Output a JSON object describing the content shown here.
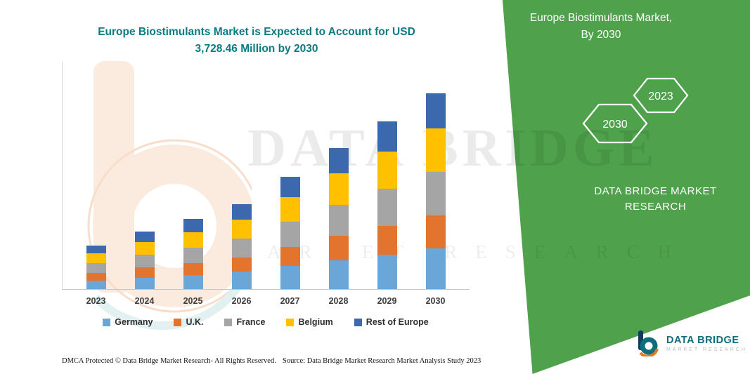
{
  "title": {
    "line1": "Europe Biostimulants Market is Expected to Account for USD",
    "line2": "3,728.46 Million by 2030"
  },
  "side_panel": {
    "heading_line1": "Europe Biostimulants Market,",
    "heading_line2": "By 2030",
    "hexagon_left": "2030",
    "hexagon_right": "2023",
    "brand_line1": "DATA BRIDGE MARKET",
    "brand_line2": "RESEARCH"
  },
  "watermark": {
    "line1": "DATA BRIDGE",
    "line2": "MARKET RESEARCH"
  },
  "logo": {
    "title": "DATA BRIDGE",
    "subtitle": "MARKET RESEARCH"
  },
  "footer": {
    "dmca": "DMCA Protected © Data Bridge Market Research-  All Rights Reserved.",
    "source": "Source: Data Bridge Market Research  Market Analysis Study 2023"
  },
  "colors": {
    "panel_green": "#4FA24B",
    "title_teal": "#077C80",
    "logo_teal": "#0C6E7E"
  },
  "chart_data": {
    "type": "bar",
    "stacked": true,
    "title": "Europe Biostimulants Market is Expected to Account for USD 3,728.46 Million by 2030",
    "value_unit": "USD Million",
    "categories": [
      "2023",
      "2024",
      "2025",
      "2026",
      "2027",
      "2028",
      "2029",
      "2030"
    ],
    "series": [
      {
        "name": "Germany",
        "color": "#6AA7D8",
        "values": [
          177,
          233,
          281,
          342,
          452,
          565,
          671,
          783
        ]
      },
      {
        "name": "U.K.",
        "color": "#E2742D",
        "values": [
          144,
          189,
          228,
          277,
          366,
          457,
          543,
          634
        ]
      },
      {
        "name": "France",
        "color": "#A5A5A5",
        "values": [
          186,
          244,
          295,
          359,
          473,
          592,
          703,
          820
        ]
      },
      {
        "name": "Belgium",
        "color": "#FFC000",
        "values": [
          186,
          244,
          295,
          359,
          473,
          592,
          703,
          820
        ]
      },
      {
        "name": "Rest of Europe",
        "color": "#3C68AE",
        "values": [
          152,
          200,
          241,
          293,
          386,
          484,
          575,
          671.46
        ]
      }
    ],
    "totals": [
      845,
      1110,
      1340,
      1630,
      2150,
      2690,
      3195,
      3728.46
    ],
    "ylim": [
      0,
      3900
    ],
    "grid": false,
    "legend_position": "bottom"
  }
}
